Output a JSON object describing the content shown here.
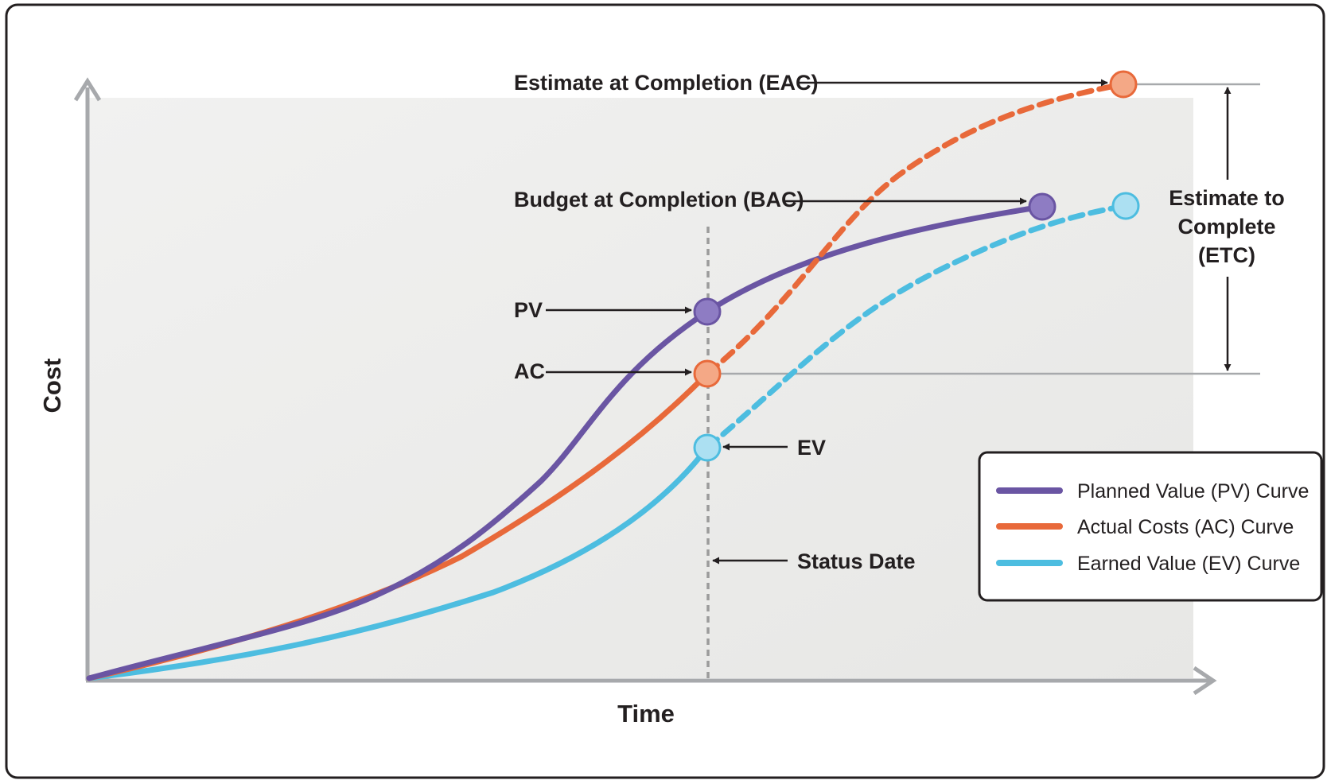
{
  "axes": {
    "x_title": "Time",
    "y_title": "Cost"
  },
  "labels": {
    "eac": "Estimate at Completion (EAC)",
    "bac": "Budget at Completion (BAC)",
    "pv": "PV",
    "ac": "AC",
    "ev": "EV",
    "status_date": "Status Date",
    "etc_lines": [
      "Estimate to",
      "Complete",
      "(ETC)"
    ]
  },
  "legend": {
    "items": [
      {
        "label": "Planned Value (PV) Curve",
        "color": "#6a55a3"
      },
      {
        "label": "Actual Costs (AC) Curve",
        "color": "#e8693a"
      },
      {
        "label": "Earned Value (EV) Curve",
        "color": "#4dbde0"
      }
    ]
  },
  "colors": {
    "pv": "#6a55a3",
    "ac": "#e8693a",
    "ev": "#4dbde0",
    "pv_marker": "#8e7cc3",
    "ac_marker": "#f4a886",
    "ev_marker": "#ace0f2",
    "axis": "#a7a9ac",
    "status_line": "#9b9b9b"
  }
}
